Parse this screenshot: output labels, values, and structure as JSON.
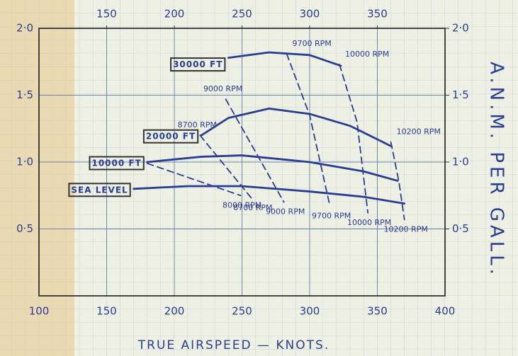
{
  "chart_data": {
    "type": "line",
    "x_label": "TRUE AIRSPEED — KNOTS.",
    "y2_label": "A.N.M. PER GALL.",
    "xlim": [
      100,
      400
    ],
    "ylim": [
      0,
      2.0
    ],
    "xticks": [
      100,
      150,
      200,
      250,
      300,
      350,
      400
    ],
    "top_xticks": [
      150,
      200,
      250,
      300,
      350
    ],
    "yticks": [
      {
        "value": 0.5,
        "label": "0·5"
      },
      {
        "value": 1.0,
        "label": "1·0"
      },
      {
        "value": 1.5,
        "label": "1·5"
      },
      {
        "value": 2.0,
        "label": "2·0"
      }
    ],
    "y2ticks": [
      {
        "value": 0.5,
        "label": "0·5"
      },
      {
        "value": 1.0,
        "label": "1·0"
      },
      {
        "value": 1.5,
        "label": "1·5"
      },
      {
        "value": 2.0,
        "label": "2·0"
      }
    ],
    "grid": true,
    "color": "#2b3d93",
    "series": [
      {
        "name": "30000 FT",
        "x": [
          240,
          270,
          300,
          323
        ],
        "values": [
          1.78,
          1.82,
          1.8,
          1.72
        ]
      },
      {
        "name": "20000 FT",
        "x": [
          220,
          240,
          270,
          300,
          330,
          360
        ],
        "values": [
          1.2,
          1.33,
          1.4,
          1.36,
          1.27,
          1.12
        ]
      },
      {
        "name": "10000 FT",
        "x": [
          180,
          220,
          250,
          300,
          340,
          365
        ],
        "values": [
          1.0,
          1.04,
          1.05,
          1.0,
          0.93,
          0.86
        ]
      },
      {
        "name": "SEA LEVEL",
        "x": [
          170,
          210,
          250,
          300,
          340,
          370
        ],
        "values": [
          0.8,
          0.82,
          0.82,
          0.78,
          0.74,
          0.69
        ]
      }
    ],
    "rpm_lines": [
      {
        "name": "8000 RPM",
        "x": [
          180,
          249
        ],
        "values": [
          0.99,
          0.75
        ]
      },
      {
        "name": "8700 RPM",
        "x": [
          219,
          257
        ],
        "values": [
          1.2,
          0.73
        ]
      },
      {
        "name": "9000 RPM",
        "x": [
          238,
          281
        ],
        "values": [
          1.47,
          0.7
        ]
      },
      {
        "name": "9700 RPM",
        "x": [
          283,
          300,
          315
        ],
        "values": [
          1.81,
          1.35,
          0.67
        ]
      },
      {
        "name": "10000 RPM",
        "x": [
          322,
          335,
          343
        ],
        "values": [
          1.73,
          1.3,
          0.62
        ]
      },
      {
        "name": "10200 RPM",
        "x": [
          360,
          366,
          370
        ],
        "values": [
          1.15,
          0.85,
          0.57
        ]
      }
    ],
    "annotations": [
      "8700 RPM",
      "9000 RPM",
      "9700 RPM",
      "10000 RPM",
      "10200 RPM"
    ]
  }
}
